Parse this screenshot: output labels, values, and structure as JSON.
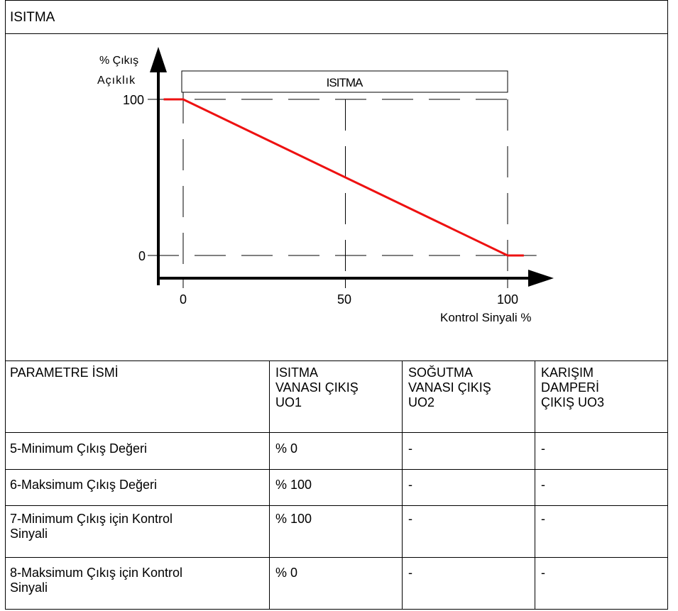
{
  "section_title": "ISITMA",
  "chart_data": {
    "type": "line",
    "y_label_line1": "% Çıkış",
    "y_label_line2": "Açıklık",
    "x_label": "Kontrol Sinyali %",
    "band_label": "ISITMA",
    "x_ticks": [
      "0",
      "50",
      "100"
    ],
    "y_ticks": [
      "100",
      "0"
    ],
    "xlim": [
      -8,
      110
    ],
    "ylim": [
      0,
      100
    ],
    "series": [
      {
        "x": [
          -6,
          0,
          100,
          105
        ],
        "y": [
          100,
          100,
          0,
          0
        ],
        "color": "#ee1111"
      }
    ],
    "grid": "dashed"
  },
  "table": {
    "headers": [
      [
        "PARAMETRE İSMİ"
      ],
      [
        "ISITMA",
        "VANASI ÇIKIŞ",
        "UO1"
      ],
      [
        "SOĞUTMA",
        "VANASI ÇIKIŞ",
        "UO2"
      ],
      [
        "KARIŞIM",
        "DAMPERİ",
        "ÇIKIŞ UO3"
      ]
    ],
    "rows": [
      [
        [
          "5-Minimum Çıkış Değeri"
        ],
        [
          "% 0"
        ],
        [
          "-"
        ],
        [
          "-"
        ]
      ],
      [
        [
          "6-Maksimum Çıkış Değeri"
        ],
        [
          "% 100"
        ],
        [
          "-"
        ],
        [
          "-"
        ]
      ],
      [
        [
          "7-Minimum Çıkış için Kontrol",
          "Sinyali"
        ],
        [
          "% 100"
        ],
        [
          "-"
        ],
        [
          "-"
        ]
      ],
      [
        [
          "8-Maksimum Çıkış için Kontrol",
          "Sinyali"
        ],
        [
          "% 0"
        ],
        [
          "-"
        ],
        [
          "-"
        ]
      ]
    ]
  }
}
